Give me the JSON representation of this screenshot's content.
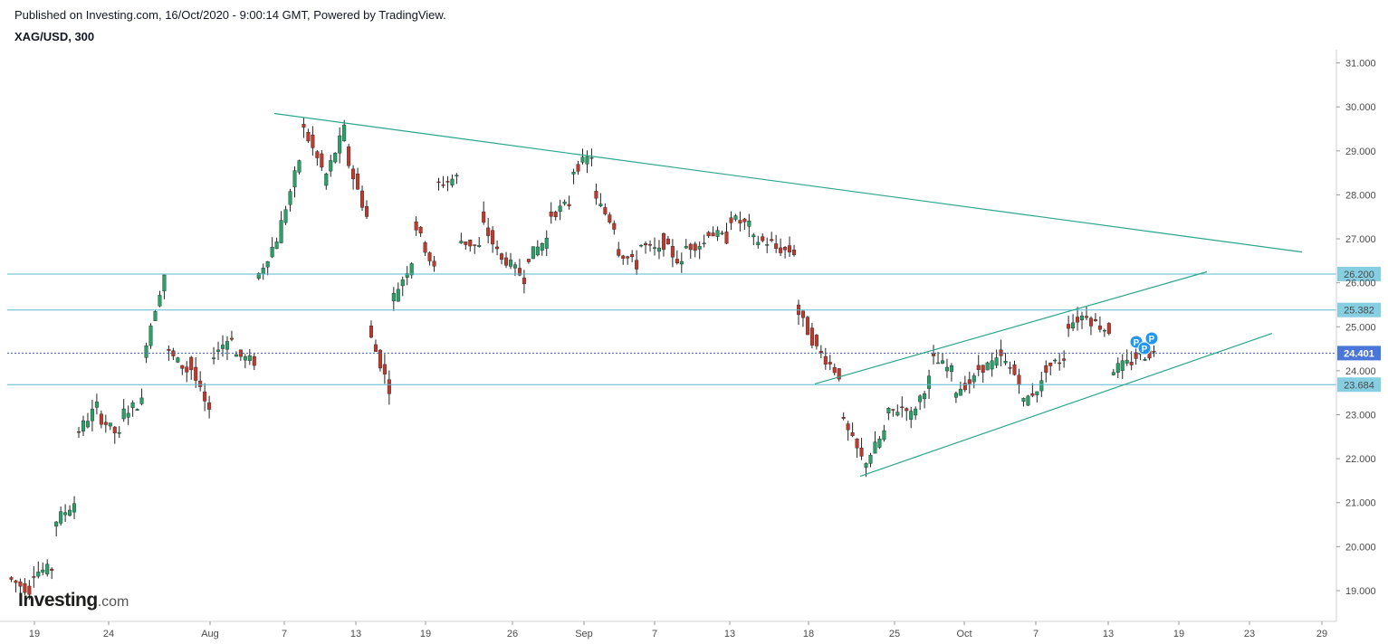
{
  "header": {
    "published": "Published on Investing.com, 16/Oct/2020 - 9:00:14 GMT, Powered by TradingView.",
    "symbol": "XAG/USD, 300"
  },
  "logo": {
    "brand": "Investing",
    "suffix": ".com"
  },
  "colors": {
    "up": "#26a269",
    "down": "#c0392b",
    "trendline": "#2aa58a",
    "hline": "#5ab8d0",
    "hline_label_bg": "#86cfe2",
    "current_label_bg": "#4a76d9",
    "marker": "#2196f3"
  },
  "chart_data": {
    "type": "candlestick",
    "title": "XAG/USD, 300",
    "ylim": [
      18.3,
      31.3
    ],
    "y_ticks": [
      "31.000",
      "30.000",
      "29.000",
      "28.000",
      "27.000",
      "26.000",
      "25.000",
      "24.000",
      "23.000",
      "22.000",
      "21.000",
      "20.000",
      "19.000"
    ],
    "x_ticks": [
      "19",
      "24",
      "Aug",
      "7",
      "13",
      "19",
      "26",
      "Sep",
      "7",
      "13",
      "18",
      "25",
      "Oct",
      "7",
      "13",
      "19",
      "23",
      "29"
    ],
    "horizontal_levels": [
      {
        "value": 26.2,
        "label": "26.200"
      },
      {
        "value": 25.382,
        "label": "25.382"
      },
      {
        "value": 23.684,
        "label": "23.684"
      }
    ],
    "current_price": {
      "value": 24.401,
      "label": "24.401"
    },
    "trendlines": [
      {
        "name": "downtrend",
        "points": [
          [
            0.0,
            29.85
          ],
          [
            1.0,
            26.7
          ]
        ]
      },
      {
        "name": "channel-upper",
        "points": [
          [
            0.0,
            23.7
          ],
          [
            1.0,
            26.25
          ]
        ]
      },
      {
        "name": "channel-lower",
        "points": [
          [
            0.0,
            21.6
          ],
          [
            1.0,
            24.85
          ]
        ]
      }
    ],
    "markers": [
      "P",
      "P",
      "P"
    ],
    "price_path": [
      [
        19.3,
        19.0
      ],
      [
        19.4,
        19.5
      ],
      [
        20.5,
        21.0
      ],
      [
        22.5,
        23.2
      ],
      [
        23.0,
        22.5
      ],
      [
        23.0,
        23.3
      ],
      [
        24.3,
        26.2
      ],
      [
        24.5,
        24.0
      ],
      [
        24.3,
        23.0
      ],
      [
        24.3,
        24.8
      ],
      [
        24.4,
        24.2
      ],
      [
        26.0,
        27.0
      ],
      [
        27.0,
        28.8
      ],
      [
        29.7,
        28.6
      ],
      [
        28.2,
        29.5
      ],
      [
        29.0,
        27.5
      ],
      [
        25.0,
        23.6
      ],
      [
        25.5,
        26.5
      ],
      [
        27.5,
        26.3
      ],
      [
        28.2,
        28.4
      ],
      [
        27.0,
        26.8
      ],
      [
        27.5,
        26.5
      ],
      [
        26.6,
        26.1
      ],
      [
        26.5,
        27.0
      ],
      [
        27.5,
        27.8
      ],
      [
        28.5,
        28.9
      ],
      [
        28.0,
        27.3
      ],
      [
        26.8,
        26.4
      ],
      [
        26.9,
        26.7
      ],
      [
        27.0,
        26.4
      ],
      [
        26.8,
        26.9
      ],
      [
        27.2,
        27.0
      ],
      [
        27.5,
        27.3
      ],
      [
        27.0,
        26.9
      ],
      [
        26.8,
        26.7
      ],
      [
        25.5,
        24.5
      ],
      [
        24.5,
        23.9
      ],
      [
        23.0,
        22.0
      ],
      [
        21.8,
        22.6
      ],
      [
        23.0,
        23.2
      ],
      [
        22.8,
        23.8
      ],
      [
        24.3,
        24.0
      ],
      [
        23.5,
        23.8
      ],
      [
        24.0,
        24.2
      ],
      [
        24.4,
        23.8
      ],
      [
        23.2,
        23.7
      ],
      [
        24.0,
        24.3
      ],
      [
        25.0,
        25.3
      ],
      [
        25.2,
        24.9
      ],
      [
        24.0,
        24.2
      ],
      [
        24.3,
        24.4
      ]
    ]
  }
}
